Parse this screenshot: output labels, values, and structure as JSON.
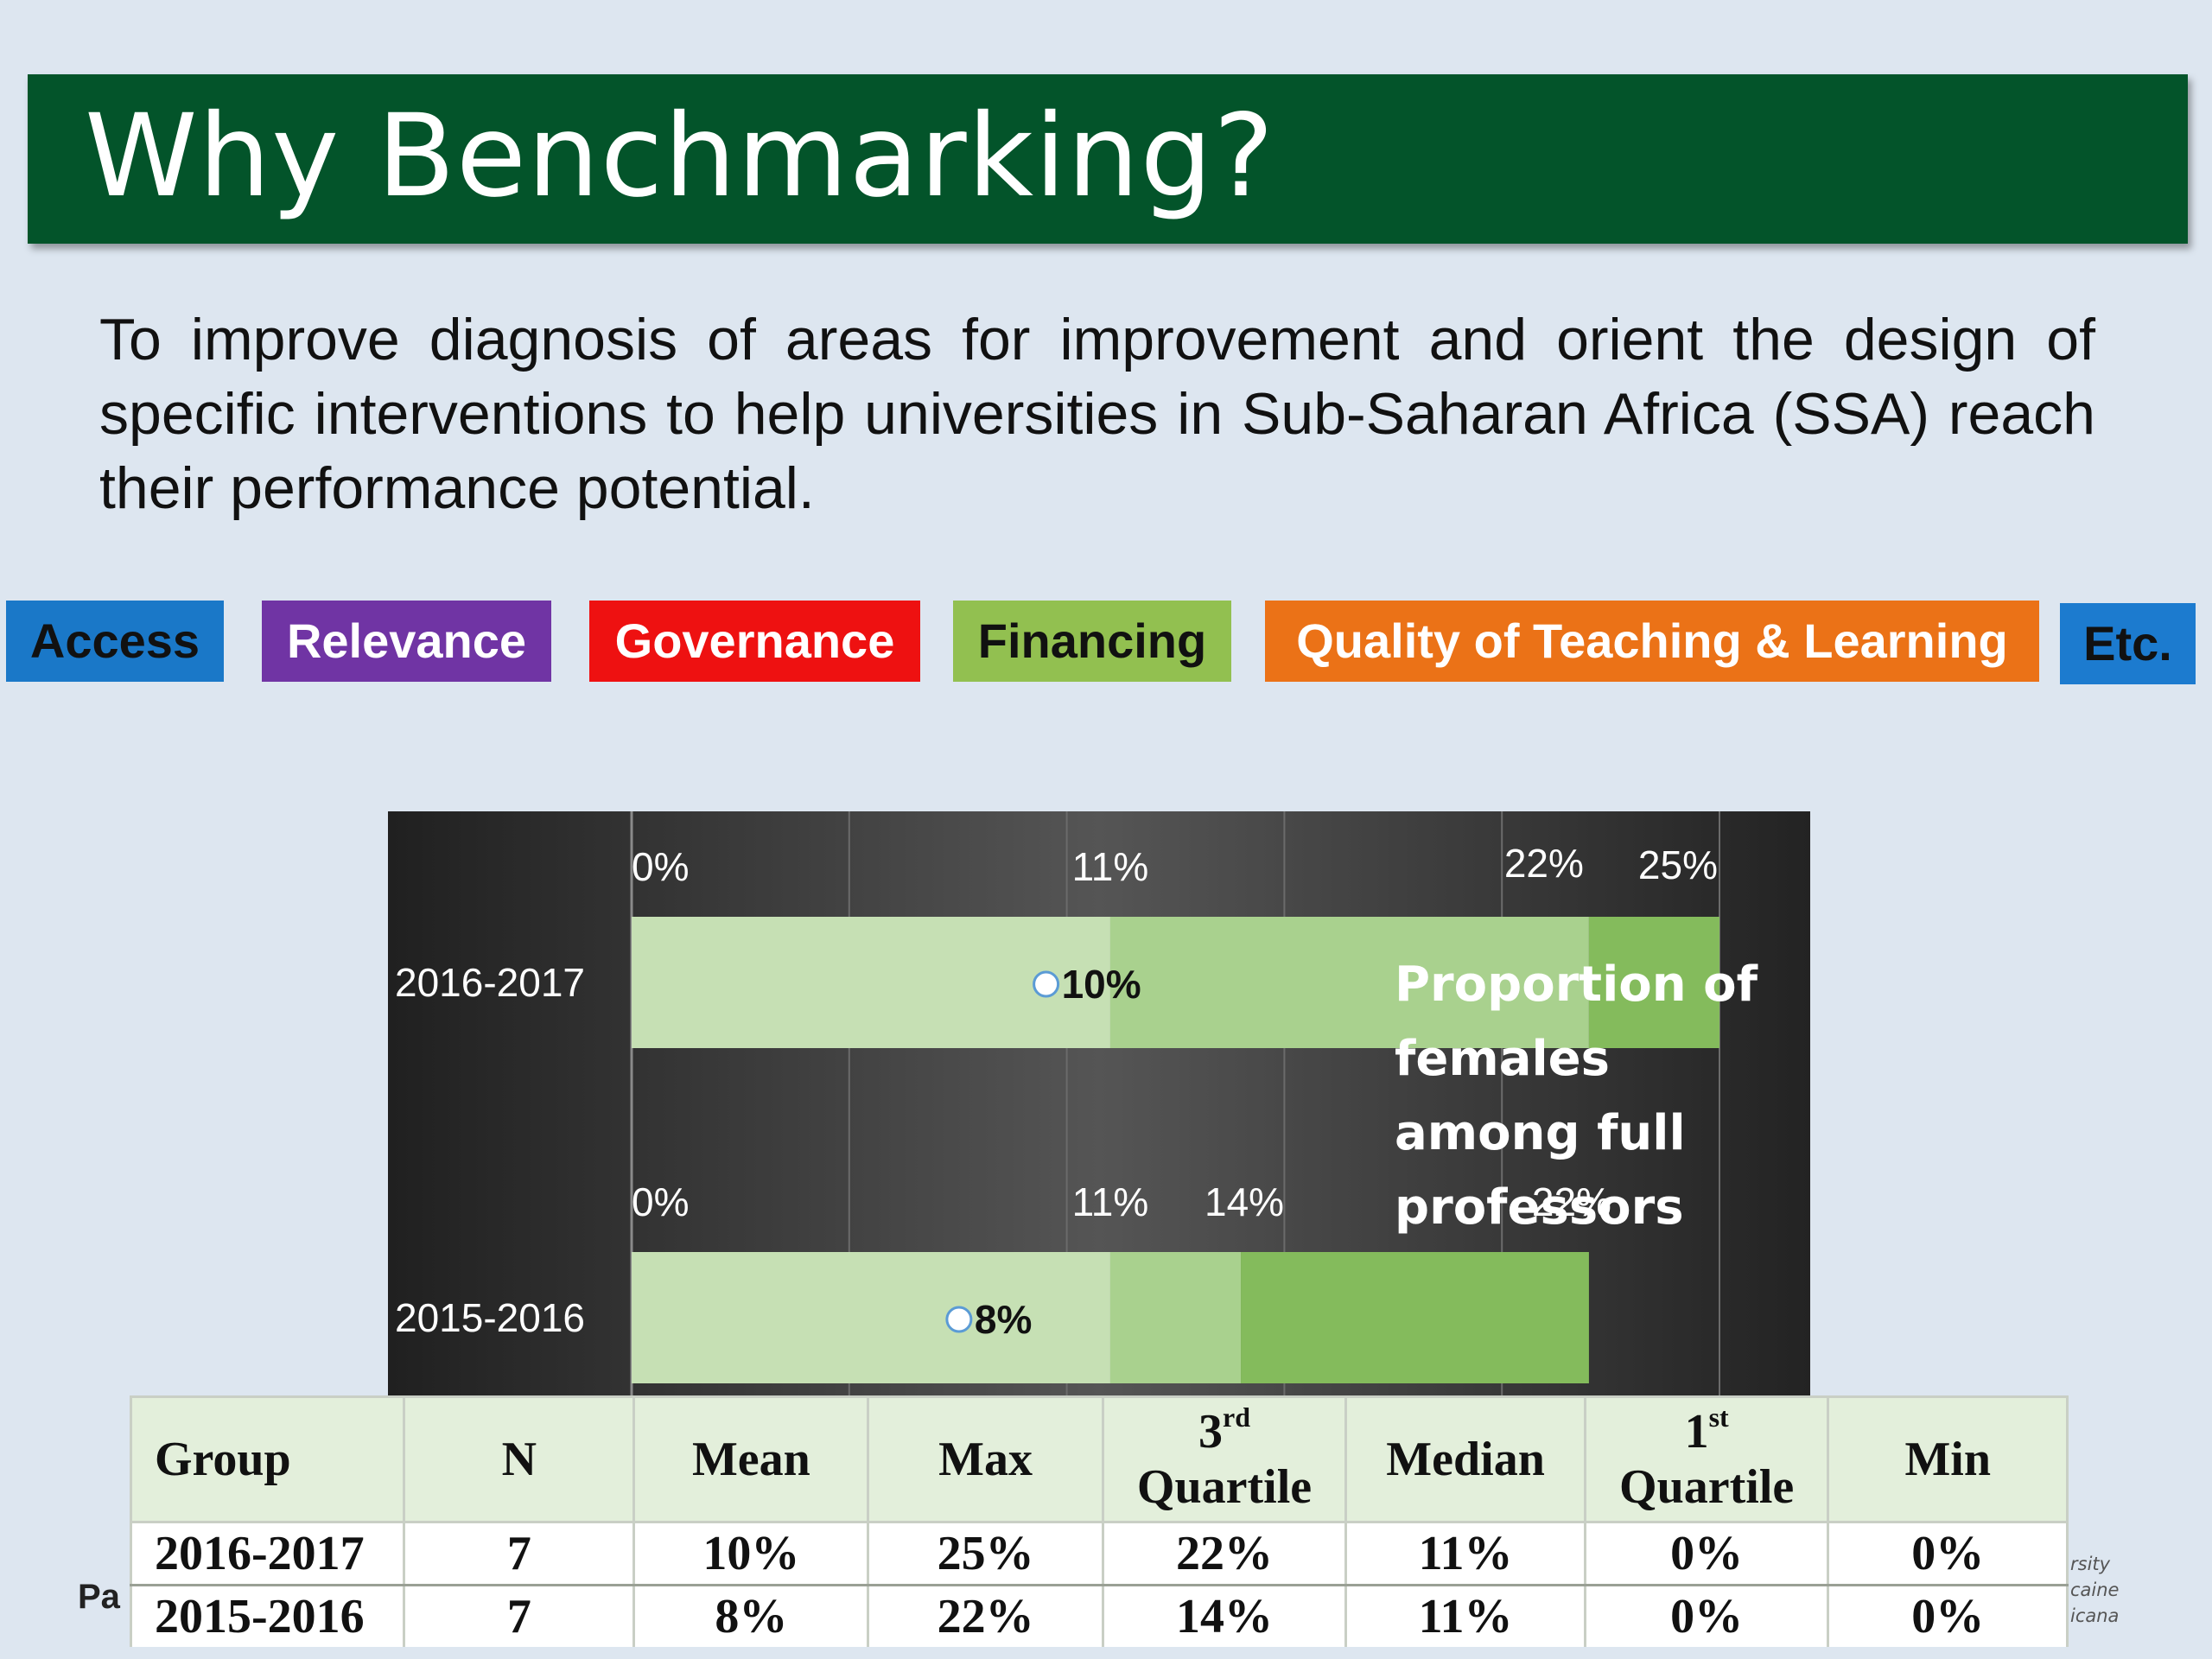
{
  "title": "Why Benchmarking?",
  "intro": "To improve diagnosis of areas for improvement and orient the design of specific interventions to help universities in Sub-Saharan Africa (SSA) reach their performance potential.",
  "tags": [
    {
      "label": "Access",
      "color": "#1a78c8"
    },
    {
      "label": "Relevance",
      "color": "#7034a4"
    },
    {
      "label": "Governance",
      "color": "#ee1111"
    },
    {
      "label": "Financing",
      "color": "#92c050"
    },
    {
      "label": "Quality of Teaching & Learning",
      "color": "#eb7217"
    },
    {
      "label": "Etc.",
      "color": "#1c7bcf"
    }
  ],
  "chart_note": "Proportion of females among full professors",
  "chart_data": {
    "type": "bar",
    "orientation": "horizontal",
    "categories": [
      "2016-2017",
      "2015-2016"
    ],
    "rows": [
      {
        "year": "2016-2017",
        "min": 0,
        "median": 11,
        "q3": 22,
        "max": 25,
        "mean": 10,
        "labels": {
          "min": "0%",
          "median": "11%",
          "q3": "22%",
          "max": "25%",
          "mean": "10%"
        }
      },
      {
        "year": "2015-2016",
        "min": 0,
        "median": 11,
        "q3": 14,
        "max": 22,
        "mean": 8,
        "labels": {
          "min": "0%",
          "median": "11%",
          "q3": "14%",
          "max": "22%",
          "mean": "8%"
        }
      }
    ],
    "xlim": [
      0,
      25
    ],
    "colors": {
      "band1": "#c6e0b4",
      "band2": "#a9d18e",
      "band3": "#84bb5c"
    }
  },
  "table": {
    "headers": [
      "Group",
      "N",
      "Mean",
      "Max",
      "3rd Quartile",
      "Median",
      "1st Quartile",
      "Min"
    ],
    "rows": [
      [
        "2016-2017",
        "7",
        "10%",
        "25%",
        "22%",
        "11%",
        "0%",
        "0%"
      ],
      [
        "2015-2016",
        "7",
        "8%",
        "22%",
        "14%",
        "11%",
        "0%",
        "0%"
      ]
    ]
  },
  "page_label_fragment": "Pa",
  "logo_fragment": [
    "rsity",
    "caine",
    "icana"
  ]
}
